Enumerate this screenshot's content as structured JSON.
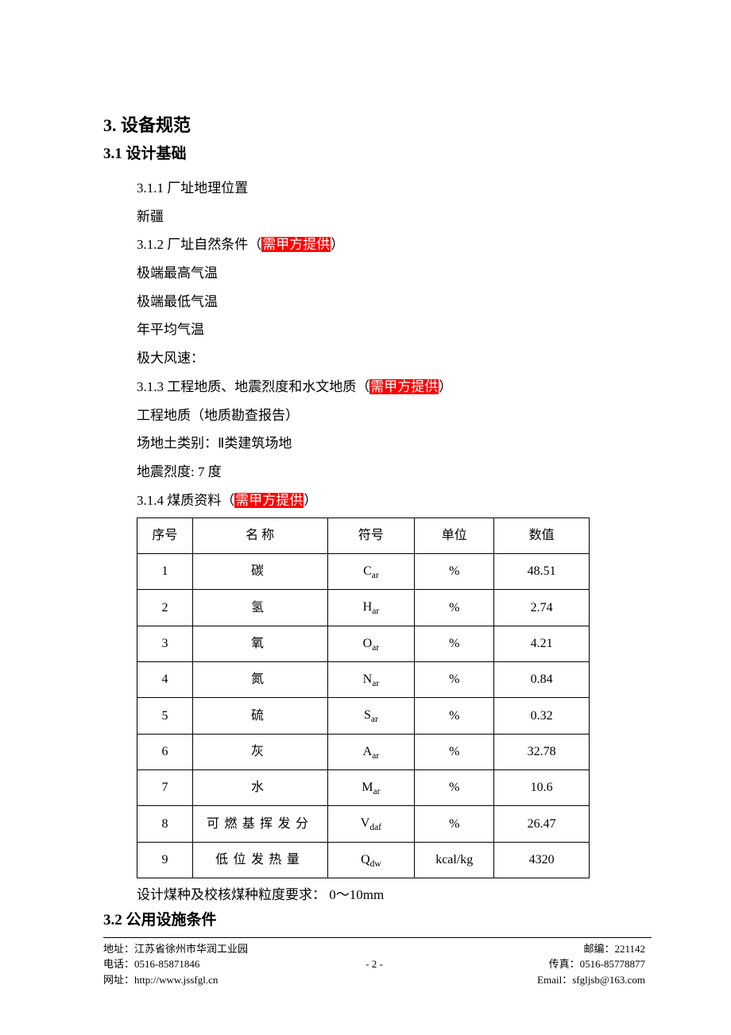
{
  "headings": {
    "h1": "3. 设备规范",
    "h2_1": "3.1  设计基础",
    "h2_2": "3.2  公用设施条件"
  },
  "highlight_bg": "#ff0000",
  "highlight_fg": "#ffffff",
  "section_311": {
    "title": "3.1.1 厂址地理位置",
    "line1": "新疆"
  },
  "section_312": {
    "prefix": "3.1.2 厂址自然条件（",
    "highlight": "需甲方提供",
    "suffix": "）",
    "l1": "极端最高气温",
    "l2": "极端最低气温",
    "l3": "年平均气温",
    "l4": "极大风速："
  },
  "section_313": {
    "prefix": "3.1.3  工程地质、地震烈度和水文地质（",
    "highlight": "需甲方提供",
    "suffix": "）",
    "l1": "工程地质（地质勘查报告）",
    "l2": "场地土类别：Ⅱ类建筑场地",
    "l3": "地震烈度:  7 度"
  },
  "section_314": {
    "prefix": "3.1.4  煤质资料（",
    "highlight": "需甲方提供",
    "suffix": "）"
  },
  "table": {
    "headers": {
      "seq": "序号",
      "name": "名    称",
      "symbol": "符号",
      "unit": "单位",
      "value": "数值"
    },
    "rows": [
      {
        "seq": "1",
        "name": "碳",
        "sym_base": "C",
        "sym_sub": "ar",
        "unit": "%",
        "value": "48.51"
      },
      {
        "seq": "2",
        "name": "氢",
        "sym_base": "H",
        "sym_sub": "ar",
        "unit": "%",
        "value": "2.74"
      },
      {
        "seq": "3",
        "name": "氧",
        "sym_base": "O",
        "sym_sub": "ar",
        "unit": "%",
        "value": "4.21"
      },
      {
        "seq": "4",
        "name": "氮",
        "sym_base": "N",
        "sym_sub": "ar",
        "unit": "%",
        "value": "0.84"
      },
      {
        "seq": "5",
        "name": "硫",
        "sym_base": "S",
        "sym_sub": "ar",
        "unit": "%",
        "value": "0.32"
      },
      {
        "seq": "6",
        "name": "灰",
        "sym_base": "A",
        "sym_sub": "ar",
        "unit": "%",
        "value": "32.78"
      },
      {
        "seq": "7",
        "name": "水",
        "sym_base": "M",
        "sym_sub": "ar",
        "unit": "%",
        "value": "10.6"
      },
      {
        "seq": "8",
        "name": "可燃基挥发分",
        "sym_base": "V",
        "sym_sub": "daf",
        "unit": "%",
        "value": "26.47"
      },
      {
        "seq": "9",
        "name": "低位发热量",
        "sym_base": "Q",
        "sym_sub": "dw",
        "unit": "kcal/kg",
        "value": "4320"
      }
    ]
  },
  "after_table": "设计煤种及校核煤种粒度要求：  0～10mm",
  "footer": {
    "address_label": "地址：",
    "address": "江苏省徐州市华润工业园",
    "zip_label": "邮编：",
    "zip": "221142",
    "tel_label": "电话：",
    "tel": "0516-85871846",
    "page": "- 2 -",
    "fax_label": "传真：",
    "fax": "0516-85778877",
    "web_label": "网址：",
    "web": "http://www.jssfgl.cn",
    "email_label": "Email：",
    "email": "sfgljsb@163.com"
  }
}
